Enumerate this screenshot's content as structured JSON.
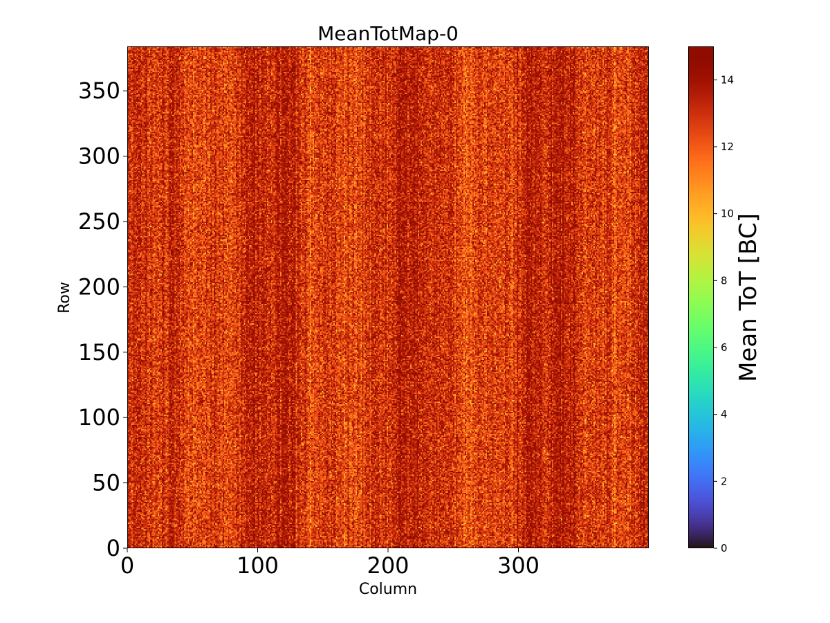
{
  "chart_data": {
    "type": "heatmap",
    "title": "MeanTotMap-0",
    "xlabel": "Column",
    "ylabel": "Row",
    "xlim": [
      0,
      400
    ],
    "ylim": [
      0,
      384
    ],
    "x_ticks": [
      0,
      100,
      200,
      300
    ],
    "y_ticks": [
      0,
      50,
      100,
      150,
      200,
      250,
      300,
      350
    ],
    "colorbar": {
      "label": "Mean ToT [BC]",
      "range": [
        0,
        15
      ],
      "ticks": [
        0,
        2,
        4,
        6,
        8,
        10,
        12,
        14
      ],
      "colormap": "turbo"
    },
    "values_summary": {
      "typical_range": [
        10,
        15
      ],
      "dominant_value": 13,
      "pattern": "noisy per-pixel values with vertical column stripes"
    }
  }
}
